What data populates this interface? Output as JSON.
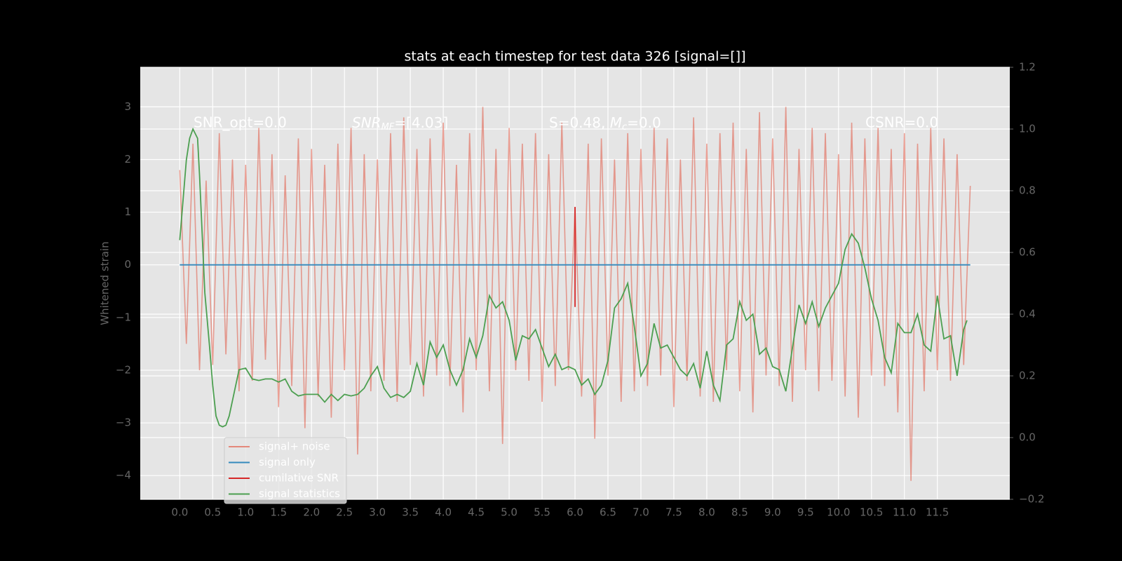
{
  "chart_data": {
    "type": "line",
    "title": "stats at each timestep for test data 326 [signal=[]]",
    "y_label": "Whitened strain",
    "annotations": [
      "SNR_opt=0.0",
      [
        "SNR",
        "MF",
        "=[4.03]"
      ],
      [
        "S=0.48, ",
        "M",
        "c",
        "=0.0"
      ],
      "CSNR=0.0"
    ],
    "xlim": [
      -0.6,
      12.6
    ],
    "ylim": [
      -4.45,
      3.75
    ],
    "y2lim": [
      -0.2,
      1.2
    ],
    "xticks": [
      {
        "value": 0,
        "label": "0.0"
      },
      {
        "value": 0.5,
        "label": "0.5"
      },
      {
        "value": 1,
        "label": "1.0"
      },
      {
        "value": 1.5,
        "label": "1.5"
      },
      {
        "value": 2,
        "label": "2.0"
      },
      {
        "value": 2.5,
        "label": "2.5"
      },
      {
        "value": 3,
        "label": "3.0"
      },
      {
        "value": 3.5,
        "label": "3.5"
      },
      {
        "value": 4,
        "label": "4.0"
      },
      {
        "value": 4.5,
        "label": "4.5"
      },
      {
        "value": 5,
        "label": "5.0"
      },
      {
        "value": 5.5,
        "label": "5.5"
      },
      {
        "value": 6,
        "label": "6.0"
      },
      {
        "value": 6.5,
        "label": "6.5"
      },
      {
        "value": 7,
        "label": "7.0"
      },
      {
        "value": 7.5,
        "label": "7.5"
      },
      {
        "value": 8,
        "label": "8.0"
      },
      {
        "value": 8.5,
        "label": "8.5"
      },
      {
        "value": 9,
        "label": "9.0"
      },
      {
        "value": 9.5,
        "label": "9.5"
      },
      {
        "value": 10,
        "label": "10.0"
      },
      {
        "value": 10.5,
        "label": "10.5"
      },
      {
        "value": 11,
        "label": "11.0"
      },
      {
        "value": 11.5,
        "label": "11.5"
      }
    ],
    "yticks": [
      {
        "value": -4,
        "label": "−4"
      },
      {
        "value": -3,
        "label": "−3"
      },
      {
        "value": -2,
        "label": "−2"
      },
      {
        "value": -1,
        "label": "−1"
      },
      0,
      1,
      2,
      3
    ],
    "y2ticks": [
      {
        "value": -0.2,
        "label": "−0.2"
      },
      {
        "value": 0,
        "label": "0.0"
      },
      {
        "value": 0.2,
        "label": "0.2"
      },
      {
        "value": 0.4,
        "label": "0.4"
      },
      {
        "value": 0.6,
        "label": "0.6"
      },
      {
        "value": 0.8,
        "label": "0.8"
      },
      {
        "value": 1,
        "label": "1.0"
      },
      {
        "value": 1.2,
        "label": "1.2"
      }
    ],
    "grid": true,
    "legend_loc": "lower left",
    "series": [
      {
        "name": "signal+ noise",
        "color": "#E24A33",
        "opacity": 0.5,
        "x": [
          0,
          0.1,
          0.2,
          0.3,
          0.4,
          0.5,
          0.6,
          0.7,
          0.8,
          0.9,
          1,
          1.1,
          1.2,
          1.3,
          1.4,
          1.5,
          1.6,
          1.7,
          1.8,
          1.9,
          2,
          2.1,
          2.2,
          2.3,
          2.4,
          2.5,
          2.6,
          2.7,
          2.8,
          2.9,
          3,
          3.1,
          3.2,
          3.3,
          3.4,
          3.5,
          3.6,
          3.7,
          3.8,
          3.9,
          4,
          4.1,
          4.2,
          4.3,
          4.4,
          4.5,
          4.6,
          4.7,
          4.8,
          4.9,
          5,
          5.1,
          5.2,
          5.3,
          5.4,
          5.5,
          5.6,
          5.7,
          5.8,
          5.9,
          6,
          6.1,
          6.2,
          6.3,
          6.4,
          6.5,
          6.6,
          6.7,
          6.8,
          6.9,
          7,
          7.1,
          7.2,
          7.3,
          7.4,
          7.5,
          7.6,
          7.7,
          7.8,
          7.9,
          8,
          8.1,
          8.2,
          8.3,
          8.4,
          8.5,
          8.6,
          8.7,
          8.8,
          8.9,
          9,
          9.1,
          9.2,
          9.3,
          9.4,
          9.5,
          9.6,
          9.7,
          9.8,
          9.9,
          10,
          10.1,
          10.2,
          10.3,
          10.4,
          10.5,
          10.6,
          10.7,
          10.8,
          10.9,
          11,
          11.1,
          11.2,
          11.3,
          11.4,
          11.5,
          11.6,
          11.7,
          11.8,
          11.9,
          12
        ],
        "values": [
          1.8,
          -1.5,
          2.3,
          -2.0,
          1.6,
          -1.9,
          2.5,
          -1.7,
          2.0,
          -2.4,
          1.9,
          -2.2,
          2.6,
          -1.8,
          2.1,
          -2.7,
          1.7,
          -2.3,
          2.4,
          -3.1,
          2.2,
          -2.5,
          1.9,
          -2.9,
          2.3,
          -2.0,
          2.6,
          -3.6,
          2.1,
          -2.4,
          2.0,
          -2.2,
          2.5,
          -2.6,
          2.8,
          -1.9,
          2.2,
          -2.5,
          2.4,
          -2.1,
          2.7,
          -2.3,
          1.9,
          -2.8,
          2.5,
          -2.0,
          3.0,
          -2.4,
          2.2,
          -3.4,
          2.6,
          -2.0,
          2.3,
          -2.2,
          2.5,
          -2.6,
          2.1,
          -2.3,
          2.7,
          -2.0,
          1.1,
          -2.5,
          2.3,
          -3.3,
          2.4,
          -2.1,
          2.0,
          -2.6,
          2.5,
          -2.4,
          2.2,
          -2.3,
          2.6,
          -2.1,
          2.4,
          -2.7,
          2.0,
          -2.2,
          2.8,
          -2.5,
          2.3,
          -2.6,
          2.5,
          -2.0,
          2.7,
          -2.4,
          2.2,
          -2.8,
          2.9,
          -2.1,
          2.4,
          -2.3,
          3.0,
          -2.6,
          2.2,
          -2.0,
          2.6,
          -2.4,
          2.5,
          -2.2,
          2.1,
          -2.5,
          2.7,
          -2.9,
          2.4,
          -2.1,
          2.6,
          -2.3,
          2.2,
          -2.8,
          2.5,
          -4.1,
          2.3,
          -2.4,
          2.6,
          -2.0,
          2.4,
          -2.2,
          2.1,
          -1.9,
          1.5
        ]
      },
      {
        "name": "signal only",
        "color": "#348ABD",
        "x": [
          0,
          12
        ],
        "values": [
          0,
          0
        ]
      },
      {
        "name": "cumilative SNR",
        "color": "#d62728",
        "x": [
          6,
          6
        ],
        "values": [
          -0.8,
          1.1
        ]
      },
      {
        "name": "signal statistics",
        "color": "#4c9f50",
        "axis": "y2",
        "x": [
          0,
          0.1,
          0.15,
          0.2,
          0.27,
          0.3,
          0.38,
          0.45,
          0.5,
          0.55,
          0.6,
          0.65,
          0.7,
          0.75,
          0.8,
          0.9,
          1,
          1.1,
          1.2,
          1.3,
          1.4,
          1.5,
          1.6,
          1.7,
          1.8,
          1.9,
          2,
          2.1,
          2.2,
          2.3,
          2.4,
          2.5,
          2.6,
          2.7,
          2.8,
          2.9,
          3,
          3.1,
          3.2,
          3.3,
          3.4,
          3.5,
          3.6,
          3.7,
          3.8,
          3.9,
          4,
          4.1,
          4.2,
          4.3,
          4.4,
          4.5,
          4.6,
          4.7,
          4.8,
          4.9,
          5,
          5.1,
          5.2,
          5.3,
          5.4,
          5.5,
          5.6,
          5.7,
          5.8,
          5.9,
          6,
          6.1,
          6.2,
          6.3,
          6.4,
          6.5,
          6.6,
          6.7,
          6.8,
          6.9,
          7,
          7.1,
          7.2,
          7.3,
          7.4,
          7.5,
          7.6,
          7.7,
          7.8,
          7.9,
          8,
          8.1,
          8.2,
          8.3,
          8.4,
          8.5,
          8.6,
          8.7,
          8.8,
          8.9,
          9,
          9.1,
          9.2,
          9.3,
          9.4,
          9.5,
          9.6,
          9.7,
          9.8,
          9.9,
          10,
          10.1,
          10.2,
          10.3,
          10.4,
          10.5,
          10.6,
          10.7,
          10.8,
          10.9,
          11,
          11.1,
          11.2,
          11.3,
          11.4,
          11.5,
          11.6,
          11.7,
          11.8,
          11.9,
          11.95
        ],
        "values": [
          0.64,
          0.9,
          0.97,
          1.0,
          0.97,
          0.85,
          0.47,
          0.3,
          0.17,
          0.07,
          0.04,
          0.035,
          0.04,
          0.07,
          0.12,
          0.22,
          0.225,
          0.19,
          0.185,
          0.19,
          0.19,
          0.18,
          0.19,
          0.15,
          0.135,
          0.14,
          0.14,
          0.14,
          0.115,
          0.14,
          0.12,
          0.14,
          0.135,
          0.14,
          0.16,
          0.2,
          0.23,
          0.16,
          0.13,
          0.14,
          0.13,
          0.15,
          0.24,
          0.17,
          0.31,
          0.26,
          0.3,
          0.22,
          0.17,
          0.22,
          0.32,
          0.26,
          0.33,
          0.46,
          0.42,
          0.44,
          0.38,
          0.25,
          0.33,
          0.32,
          0.35,
          0.29,
          0.23,
          0.27,
          0.22,
          0.23,
          0.22,
          0.17,
          0.19,
          0.14,
          0.17,
          0.25,
          0.42,
          0.45,
          0.5,
          0.36,
          0.2,
          0.24,
          0.37,
          0.29,
          0.3,
          0.26,
          0.22,
          0.2,
          0.24,
          0.16,
          0.28,
          0.17,
          0.12,
          0.3,
          0.32,
          0.44,
          0.38,
          0.4,
          0.27,
          0.29,
          0.23,
          0.22,
          0.15,
          0.29,
          0.43,
          0.37,
          0.44,
          0.36,
          0.42,
          0.46,
          0.5,
          0.61,
          0.66,
          0.63,
          0.55,
          0.45,
          0.38,
          0.26,
          0.21,
          0.37,
          0.34,
          0.34,
          0.4,
          0.3,
          0.28,
          0.46,
          0.32,
          0.33,
          0.2,
          0.35,
          0.38
        ]
      }
    ]
  }
}
